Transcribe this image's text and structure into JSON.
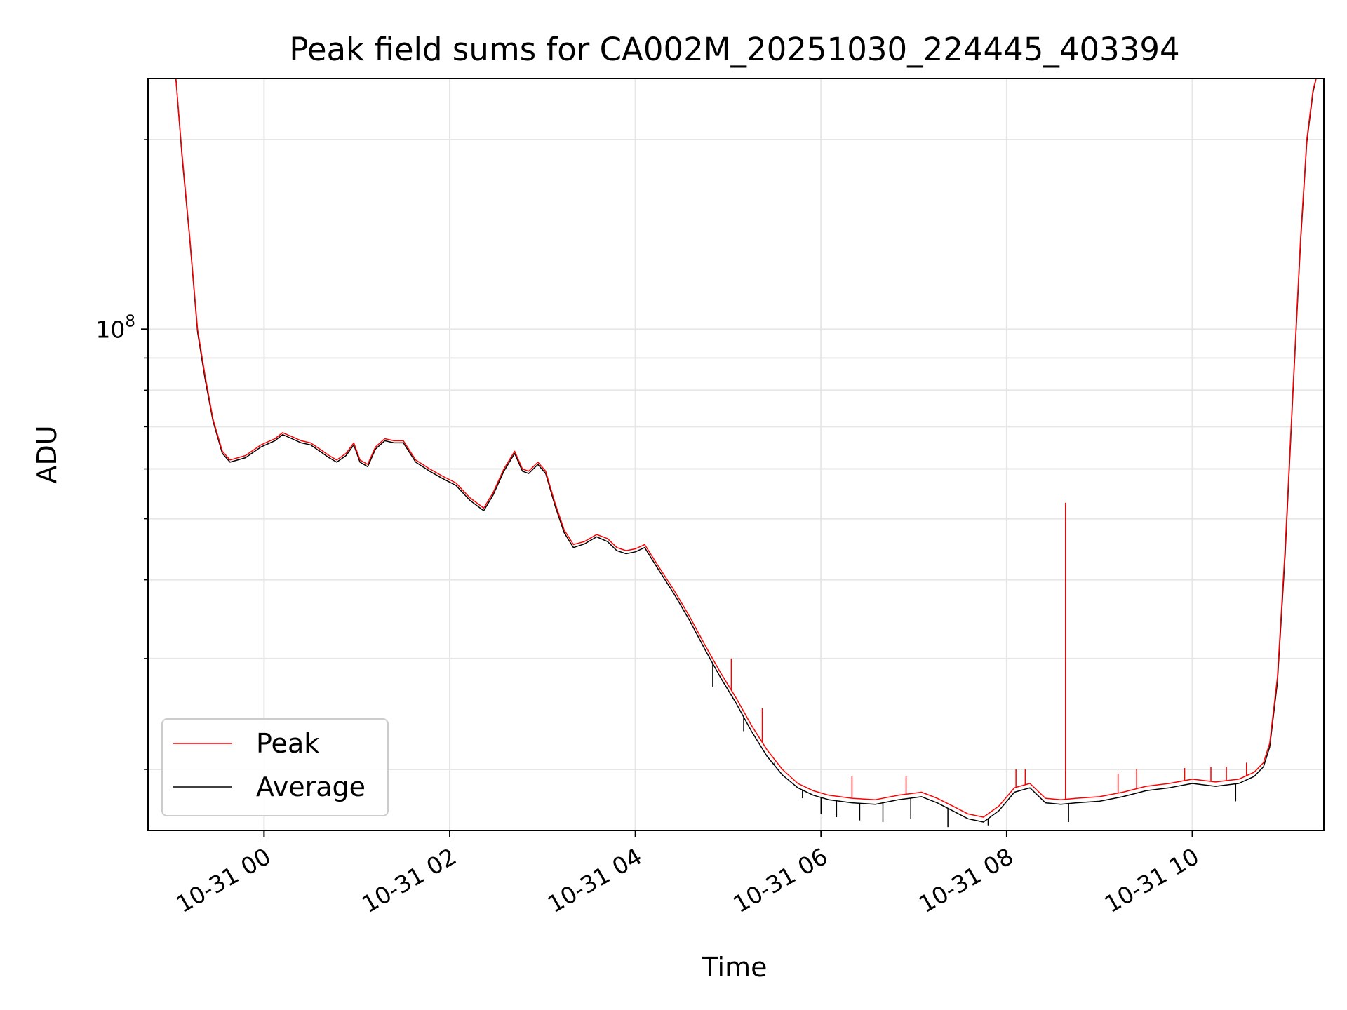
{
  "chart_data": {
    "type": "line",
    "title": "Peak field sums for CA002M_20251030_224445_403394",
    "xlabel": "Time",
    "ylabel": "ADU",
    "y_scale": "log",
    "grid": true,
    "legend_position": "lower-left",
    "xlim": [
      "2025-10-30 22:45",
      "2025-10-31 11:25"
    ],
    "ylim": [
      16000000,
      250000000
    ],
    "x_ticks": [
      "10-31 00",
      "10-31 02",
      "10-31 04",
      "10-31 06",
      "10-31 08",
      "10-31 10"
    ],
    "y_ticks": [
      {
        "value": 100000000,
        "base": "10",
        "exp": "8"
      }
    ],
    "colors": {
      "Peak": "#ff0000",
      "Average": "#000000"
    },
    "series": [
      {
        "name": "Peak",
        "x": [
          "2025-10-30 23:03",
          "2025-10-30 23:07",
          "2025-10-30 23:12",
          "2025-10-30 23:17",
          "2025-10-30 23:22",
          "2025-10-30 23:27",
          "2025-10-30 23:33",
          "2025-10-30 23:38",
          "2025-10-30 23:48",
          "2025-10-30 23:58",
          "2025-10-31 00:07",
          "2025-10-31 00:12",
          "2025-10-31 00:18",
          "2025-10-31 00:24",
          "2025-10-31 00:30",
          "2025-10-31 00:36",
          "2025-10-31 00:42",
          "2025-10-31 00:47",
          "2025-10-31 00:53",
          "2025-10-31 00:58",
          "2025-10-31 01:02",
          "2025-10-31 01:07",
          "2025-10-31 01:12",
          "2025-10-31 01:18",
          "2025-10-31 01:24",
          "2025-10-31 01:30",
          "2025-10-31 01:38",
          "2025-10-31 01:47",
          "2025-10-31 01:55",
          "2025-10-31 02:04",
          "2025-10-31 02:13",
          "2025-10-31 02:22",
          "2025-10-31 02:28",
          "2025-10-31 02:35",
          "2025-10-31 02:42",
          "2025-10-31 02:47",
          "2025-10-31 02:51",
          "2025-10-31 02:57",
          "2025-10-31 03:02",
          "2025-10-31 03:08",
          "2025-10-31 03:14",
          "2025-10-31 03:20",
          "2025-10-31 03:27",
          "2025-10-31 03:35",
          "2025-10-31 03:42",
          "2025-10-31 03:48",
          "2025-10-31 03:54",
          "2025-10-31 04:00",
          "2025-10-31 04:06",
          "2025-10-31 04:15",
          "2025-10-31 04:25",
          "2025-10-31 04:35",
          "2025-10-31 04:45",
          "2025-10-31 04:55",
          "2025-10-31 05:05",
          "2025-10-31 05:15",
          "2025-10-31 05:25",
          "2025-10-31 05:35",
          "2025-10-31 05:45",
          "2025-10-31 05:55",
          "2025-10-31 06:05",
          "2025-10-31 06:20",
          "2025-10-31 06:35",
          "2025-10-31 06:50",
          "2025-10-31 07:05",
          "2025-10-31 07:15",
          "2025-10-31 07:25",
          "2025-10-31 07:35",
          "2025-10-31 07:45",
          "2025-10-31 07:55",
          "2025-10-31 08:05",
          "2025-10-31 08:15",
          "2025-10-31 08:25",
          "2025-10-31 08:35",
          "2025-10-31 08:45",
          "2025-10-31 09:00",
          "2025-10-31 09:15",
          "2025-10-31 09:30",
          "2025-10-31 09:45",
          "2025-10-31 10:00",
          "2025-10-31 10:15",
          "2025-10-31 10:30",
          "2025-10-31 10:40",
          "2025-10-31 10:46",
          "2025-10-31 10:50",
          "2025-10-31 10:55",
          "2025-10-31 11:00",
          "2025-10-31 11:05",
          "2025-10-31 11:10",
          "2025-10-31 11:14",
          "2025-10-31 11:18",
          "2025-10-31 11:20"
        ],
        "y": [
          250000000,
          190000000,
          140000000,
          100000000,
          84000000,
          72000000,
          64000000,
          62000000,
          63000000,
          65500000,
          67000000,
          68500000,
          67500000,
          66500000,
          66000000,
          64500000,
          63000000,
          62000000,
          63500000,
          66000000,
          62000000,
          61000000,
          65000000,
          67000000,
          66500000,
          66500000,
          62000000,
          60000000,
          58500000,
          57000000,
          54000000,
          52000000,
          55000000,
          60000000,
          64000000,
          60000000,
          59500000,
          61500000,
          59500000,
          53000000,
          48000000,
          45500000,
          46000000,
          47200000,
          46500000,
          45000000,
          44500000,
          44800000,
          45500000,
          42000000,
          38500000,
          35000000,
          31500000,
          28500000,
          26000000,
          23500000,
          21500000,
          20000000,
          19000000,
          18500000,
          18200000,
          18000000,
          17900000,
          18200000,
          18400000,
          18000000,
          17500000,
          17000000,
          16800000,
          17500000,
          18700000,
          19000000,
          18000000,
          17900000,
          18000000,
          18100000,
          18400000,
          18800000,
          19000000,
          19300000,
          19100000,
          19300000,
          19800000,
          20500000,
          22000000,
          28000000,
          45000000,
          80000000,
          140000000,
          200000000,
          240000000,
          250000000
        ]
      },
      {
        "name": "Average",
        "x": [
          "2025-10-30 23:03",
          "2025-10-30 23:07",
          "2025-10-30 23:12",
          "2025-10-30 23:17",
          "2025-10-30 23:22",
          "2025-10-30 23:27",
          "2025-10-30 23:33",
          "2025-10-30 23:38",
          "2025-10-30 23:48",
          "2025-10-30 23:58",
          "2025-10-31 00:07",
          "2025-10-31 00:12",
          "2025-10-31 00:18",
          "2025-10-31 00:24",
          "2025-10-31 00:30",
          "2025-10-31 00:36",
          "2025-10-31 00:42",
          "2025-10-31 00:47",
          "2025-10-31 00:53",
          "2025-10-31 00:58",
          "2025-10-31 01:02",
          "2025-10-31 01:07",
          "2025-10-31 01:12",
          "2025-10-31 01:18",
          "2025-10-31 01:24",
          "2025-10-31 01:30",
          "2025-10-31 01:38",
          "2025-10-31 01:47",
          "2025-10-31 01:55",
          "2025-10-31 02:04",
          "2025-10-31 02:13",
          "2025-10-31 02:22",
          "2025-10-31 02:28",
          "2025-10-31 02:35",
          "2025-10-31 02:42",
          "2025-10-31 02:47",
          "2025-10-31 02:51",
          "2025-10-31 02:57",
          "2025-10-31 03:02",
          "2025-10-31 03:08",
          "2025-10-31 03:14",
          "2025-10-31 03:20",
          "2025-10-31 03:27",
          "2025-10-31 03:35",
          "2025-10-31 03:42",
          "2025-10-31 03:48",
          "2025-10-31 03:54",
          "2025-10-31 04:00",
          "2025-10-31 04:06",
          "2025-10-31 04:15",
          "2025-10-31 04:25",
          "2025-10-31 04:35",
          "2025-10-31 04:45",
          "2025-10-31 04:55",
          "2025-10-31 05:05",
          "2025-10-31 05:15",
          "2025-10-31 05:25",
          "2025-10-31 05:35",
          "2025-10-31 05:45",
          "2025-10-31 05:55",
          "2025-10-31 06:05",
          "2025-10-31 06:20",
          "2025-10-31 06:35",
          "2025-10-31 06:50",
          "2025-10-31 07:05",
          "2025-10-31 07:15",
          "2025-10-31 07:25",
          "2025-10-31 07:35",
          "2025-10-31 07:45",
          "2025-10-31 07:55",
          "2025-10-31 08:05",
          "2025-10-31 08:15",
          "2025-10-31 08:25",
          "2025-10-31 08:35",
          "2025-10-31 08:45",
          "2025-10-31 09:00",
          "2025-10-31 09:15",
          "2025-10-31 09:30",
          "2025-10-31 09:45",
          "2025-10-31 10:00",
          "2025-10-31 10:15",
          "2025-10-31 10:30",
          "2025-10-31 10:40",
          "2025-10-31 10:46",
          "2025-10-31 10:50",
          "2025-10-31 10:55",
          "2025-10-31 11:00",
          "2025-10-31 11:05",
          "2025-10-31 11:10",
          "2025-10-31 11:14",
          "2025-10-31 11:18",
          "2025-10-31 11:20"
        ],
        "y": [
          250000000,
          188000000,
          139000000,
          99000000,
          83000000,
          71500000,
          63500000,
          61500000,
          62500000,
          65000000,
          66500000,
          68000000,
          67000000,
          66000000,
          65500000,
          64000000,
          62500000,
          61500000,
          63000000,
          65500000,
          61500000,
          60500000,
          64500000,
          66500000,
          66000000,
          66000000,
          61500000,
          59500000,
          58000000,
          56500000,
          53500000,
          51500000,
          54500000,
          59500000,
          63500000,
          59500000,
          59000000,
          61000000,
          59000000,
          52500000,
          47500000,
          45000000,
          45600000,
          46800000,
          46000000,
          44500000,
          44000000,
          44300000,
          45000000,
          41500000,
          38000000,
          34500000,
          31000000,
          28000000,
          25500000,
          23000000,
          21000000,
          19600000,
          18700000,
          18200000,
          17900000,
          17700000,
          17600000,
          17900000,
          18100000,
          17700000,
          17200000,
          16700000,
          16500000,
          17200000,
          18400000,
          18700000,
          17700000,
          17600000,
          17700000,
          17800000,
          18100000,
          18500000,
          18700000,
          19000000,
          18800000,
          19000000,
          19500000,
          20200000,
          21700000,
          27500000,
          44000000,
          79000000,
          138000000,
          198000000,
          238000000,
          250000000
        ]
      }
    ],
    "spikes": {
      "Peak": [
        {
          "x": "2025-10-31 05:02",
          "y": 30000000
        },
        {
          "x": "2025-10-31 05:22",
          "y": 25000000
        },
        {
          "x": "2025-10-31 06:20",
          "y": 19500000
        },
        {
          "x": "2025-10-31 06:55",
          "y": 19500000
        },
        {
          "x": "2025-10-31 08:06",
          "y": 20000000
        },
        {
          "x": "2025-10-31 08:12",
          "y": 20000000
        },
        {
          "x": "2025-10-31 08:38",
          "y": 53000000
        },
        {
          "x": "2025-10-31 09:12",
          "y": 19700000
        },
        {
          "x": "2025-10-31 09:24",
          "y": 20000000
        },
        {
          "x": "2025-10-31 09:55",
          "y": 20100000
        },
        {
          "x": "2025-10-31 10:12",
          "y": 20200000
        },
        {
          "x": "2025-10-31 10:22",
          "y": 20200000
        },
        {
          "x": "2025-10-31 10:35",
          "y": 20500000
        }
      ],
      "Average": [
        {
          "x": "2025-10-31 04:50",
          "y": 27000000
        },
        {
          "x": "2025-10-31 05:10",
          "y": 23000000
        },
        {
          "x": "2025-10-31 05:30",
          "y": 20500000
        },
        {
          "x": "2025-10-31 05:48",
          "y": 18000000
        },
        {
          "x": "2025-10-31 06:00",
          "y": 17000000
        },
        {
          "x": "2025-10-31 06:10",
          "y": 16800000
        },
        {
          "x": "2025-10-31 06:25",
          "y": 16600000
        },
        {
          "x": "2025-10-31 06:40",
          "y": 16500000
        },
        {
          "x": "2025-10-31 06:58",
          "y": 16700000
        },
        {
          "x": "2025-10-31 07:22",
          "y": 16200000
        },
        {
          "x": "2025-10-31 07:48",
          "y": 16300000
        },
        {
          "x": "2025-10-31 08:40",
          "y": 16500000
        },
        {
          "x": "2025-10-31 10:28",
          "y": 17800000
        }
      ]
    }
  }
}
